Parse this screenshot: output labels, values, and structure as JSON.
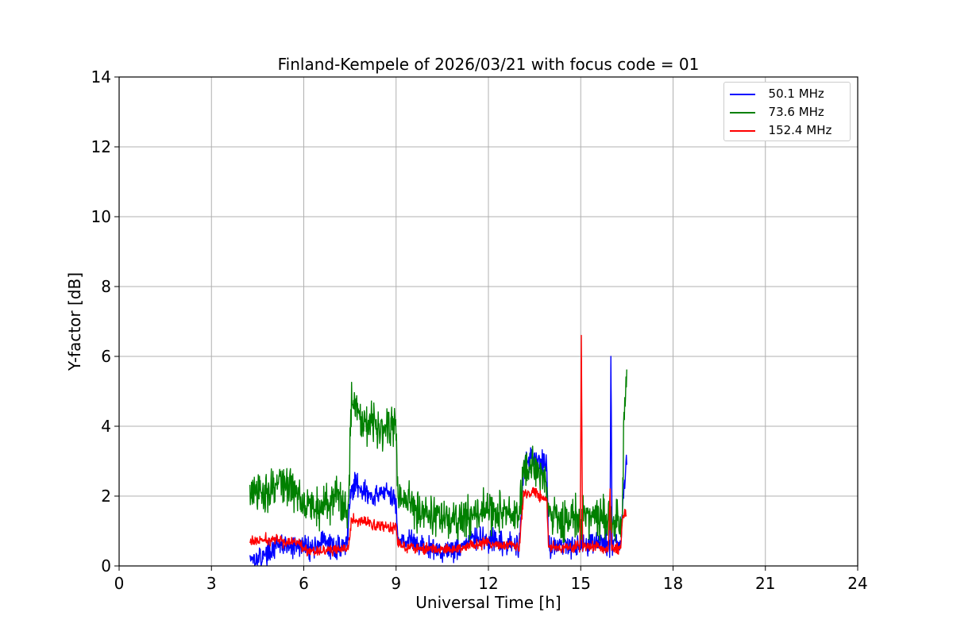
{
  "chart_data": {
    "type": "line",
    "title": "Finland-Kempele of 2026/03/21 with focus code = 01",
    "xlabel": "Universal Time [h]",
    "ylabel": "Y-factor [dB]",
    "xlim": [
      0,
      24
    ],
    "ylim": [
      0,
      14
    ],
    "xticks": [
      0,
      3,
      6,
      9,
      12,
      15,
      18,
      21,
      24
    ],
    "yticks": [
      0,
      2,
      4,
      6,
      8,
      10,
      12,
      14
    ],
    "grid": true,
    "legend_position": "top-right",
    "series": [
      {
        "name": "  50.1 MHz",
        "color": "#0000ff",
        "noise": 0.25,
        "points": [
          [
            4.25,
            0.3
          ],
          [
            4.5,
            0.2
          ],
          [
            4.8,
            0.35
          ],
          [
            5.0,
            0.5
          ],
          [
            5.3,
            0.6
          ],
          [
            5.6,
            0.5
          ],
          [
            6.0,
            0.6
          ],
          [
            6.3,
            0.5
          ],
          [
            6.6,
            0.7
          ],
          [
            7.0,
            0.5
          ],
          [
            7.4,
            0.6
          ],
          [
            7.5,
            2.0
          ],
          [
            7.7,
            2.4
          ],
          [
            8.0,
            2.1
          ],
          [
            8.3,
            1.9
          ],
          [
            8.6,
            2.2
          ],
          [
            9.0,
            1.8
          ],
          [
            9.05,
            0.8
          ],
          [
            9.5,
            0.7
          ],
          [
            10.0,
            0.5
          ],
          [
            10.5,
            0.45
          ],
          [
            11.0,
            0.5
          ],
          [
            11.5,
            0.8
          ],
          [
            12.0,
            0.7
          ],
          [
            12.5,
            0.6
          ],
          [
            13.0,
            0.6
          ],
          [
            13.15,
            3.0
          ],
          [
            13.5,
            3.1
          ],
          [
            13.9,
            2.9
          ],
          [
            13.95,
            0.6
          ],
          [
            14.5,
            0.6
          ],
          [
            15.0,
            0.6
          ],
          [
            15.5,
            0.7
          ],
          [
            15.95,
            0.6
          ],
          [
            15.98,
            6.0
          ],
          [
            16.02,
            0.6
          ],
          [
            16.3,
            0.7
          ],
          [
            16.35,
            1.6
          ],
          [
            16.5,
            3.0
          ]
        ]
      },
      {
        "name": "  73.6 MHz",
        "color": "#008000",
        "noise": 0.45,
        "points": [
          [
            4.25,
            2.1
          ],
          [
            4.6,
            2.0
          ],
          [
            5.0,
            2.3
          ],
          [
            5.3,
            2.4
          ],
          [
            5.6,
            2.2
          ],
          [
            6.0,
            1.9
          ],
          [
            6.5,
            1.6
          ],
          [
            7.0,
            2.0
          ],
          [
            7.45,
            1.6
          ],
          [
            7.55,
            5.0
          ],
          [
            7.8,
            4.3
          ],
          [
            8.2,
            4.1
          ],
          [
            8.6,
            4.0
          ],
          [
            9.0,
            4.0
          ],
          [
            9.05,
            2.0
          ],
          [
            9.5,
            1.8
          ],
          [
            10.0,
            1.5
          ],
          [
            10.5,
            1.4
          ],
          [
            11.0,
            1.2
          ],
          [
            11.5,
            1.5
          ],
          [
            12.0,
            1.6
          ],
          [
            12.5,
            1.5
          ],
          [
            13.0,
            1.4
          ],
          [
            13.15,
            2.7
          ],
          [
            13.5,
            2.8
          ],
          [
            13.9,
            2.5
          ],
          [
            13.95,
            1.5
          ],
          [
            14.5,
            1.3
          ],
          [
            15.0,
            1.4
          ],
          [
            15.5,
            1.4
          ],
          [
            16.0,
            1.3
          ],
          [
            16.35,
            1.2
          ],
          [
            16.4,
            4.2
          ],
          [
            16.5,
            5.5
          ]
        ]
      },
      {
        "name": "  152.4 MHz",
        "color": "#ff0000",
        "noise": 0.12,
        "points": [
          [
            4.25,
            0.7
          ],
          [
            5.0,
            0.75
          ],
          [
            5.5,
            0.7
          ],
          [
            5.9,
            0.65
          ],
          [
            6.05,
            0.45
          ],
          [
            6.5,
            0.45
          ],
          [
            7.0,
            0.45
          ],
          [
            7.45,
            0.5
          ],
          [
            7.55,
            1.3
          ],
          [
            8.0,
            1.25
          ],
          [
            8.5,
            1.15
          ],
          [
            9.0,
            1.1
          ],
          [
            9.05,
            0.65
          ],
          [
            9.5,
            0.55
          ],
          [
            10.0,
            0.5
          ],
          [
            10.5,
            0.45
          ],
          [
            11.0,
            0.5
          ],
          [
            11.5,
            0.6
          ],
          [
            12.0,
            0.65
          ],
          [
            12.5,
            0.6
          ],
          [
            13.0,
            0.55
          ],
          [
            13.15,
            2.1
          ],
          [
            13.5,
            2.1
          ],
          [
            13.9,
            1.9
          ],
          [
            13.95,
            0.55
          ],
          [
            14.5,
            0.5
          ],
          [
            14.98,
            0.55
          ],
          [
            15.02,
            6.6
          ],
          [
            15.06,
            0.55
          ],
          [
            15.5,
            0.55
          ],
          [
            15.9,
            0.5
          ],
          [
            15.95,
            2.3
          ],
          [
            16.0,
            0.5
          ],
          [
            16.3,
            0.5
          ],
          [
            16.35,
            1.4
          ],
          [
            16.5,
            1.5
          ]
        ]
      }
    ]
  }
}
